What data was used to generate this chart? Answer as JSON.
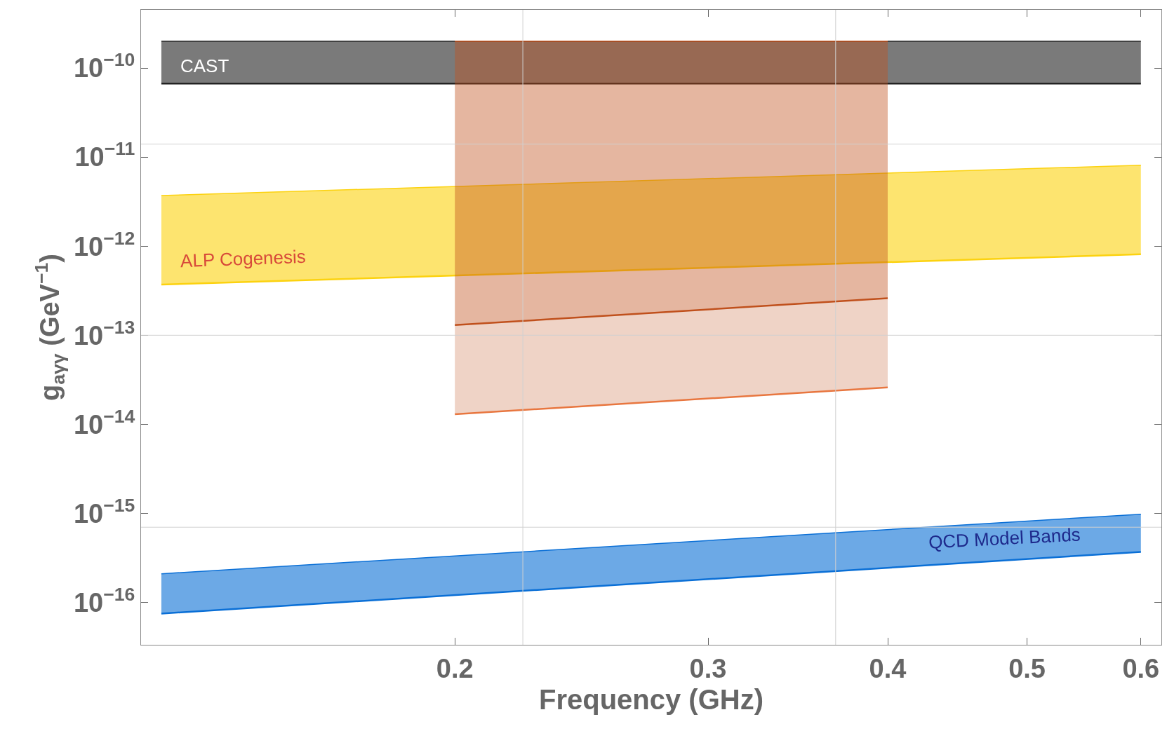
{
  "chart_data": {
    "type": "area",
    "xlabel": "Frequency (GHz)",
    "ylabel": "g$_{aγγ}$ (GeV$^{−1}$)",
    "log": "xy",
    "xlim": [
      0.121,
      0.62
    ],
    "ylim": [
      3.35e-17,
      4.5e-10
    ],
    "xticks": [
      0.2,
      0.3,
      0.4,
      0.5,
      0.6
    ],
    "yticks": [
      {
        "value": 1e-16,
        "label": "10$^{−16}$"
      },
      {
        "value": 1e-15,
        "label": "10$^{−15}$"
      },
      {
        "value": 1e-14,
        "label": "10$^{−14}$"
      },
      {
        "value": 1e-13,
        "label": "10$^{−13}$"
      },
      {
        "value": 1e-12,
        "label": "10$^{−12}$"
      },
      {
        "value": 1e-11,
        "label": "10$^{−11}$"
      },
      {
        "value": 1e-10,
        "label": "10$^{−10}$"
      }
    ],
    "series": [
      {
        "type": "line",
        "x": [
          0.125,
          0.6
        ],
        "values": [
          6.7e-11,
          6.7e-11
        ],
        "color": "#222222"
      },
      {
        "x": [
          0.125,
          0.6
        ],
        "values": [
          2e-10,
          2e-10
        ],
        "color": "#222222"
      },
      {
        "type": "line",
        "x": [
          0.125,
          0.6
        ],
        "values": [
          3.7e-13,
          8.1e-13
        ],
        "color": "#fcd20f"
      },
      {
        "x": [
          0.125,
          0.6
        ],
        "values": [
          3.7e-12,
          8.1e-12
        ],
        "color": "#fcd20f"
      },
      {
        "type": "line",
        "x": [
          0.2,
          0.4
        ],
        "values": [
          1.3e-14,
          2.6e-14
        ],
        "color": "#e8763f"
      },
      {
        "x": [
          0.2,
          0.4
        ],
        "values": [
          1.3e-13,
          2.6e-13
        ],
        "color": "#c0501c"
      },
      {
        "x": [
          0.2,
          0.4
        ],
        "values": [
          2e-10,
          2e-10
        ],
        "color": "#c0501c"
      },
      {
        "type": "line",
        "x": [
          0.125,
          0.6
        ],
        "values": [
          7.5e-17,
          3.7e-16
        ],
        "color": "#0a6fd6"
      },
      {
        "x": [
          0.125,
          0.6
        ],
        "values": [
          2.1e-16,
          9.8e-16
        ],
        "color": "#0a6fd6"
      }
    ],
    "ref_lines": [
      {
        "axis": "x",
        "value": 0.223,
        "color": "#d0d0d0"
      },
      {
        "axis": "x",
        "value": 0.368,
        "color": "#d0d0d0"
      },
      {
        "axis": "y",
        "value": 1.4e-11,
        "color": "#d0d0d0"
      },
      {
        "axis": "y",
        "value": 1e-13,
        "color": "#d0d0d0"
      },
      {
        "axis": "y",
        "value": 7e-16,
        "color": "#d0d0d0"
      }
    ],
    "annotations": [
      "CAST",
      "ALP Cogenesis",
      "QCD Model Bands"
    ]
  }
}
